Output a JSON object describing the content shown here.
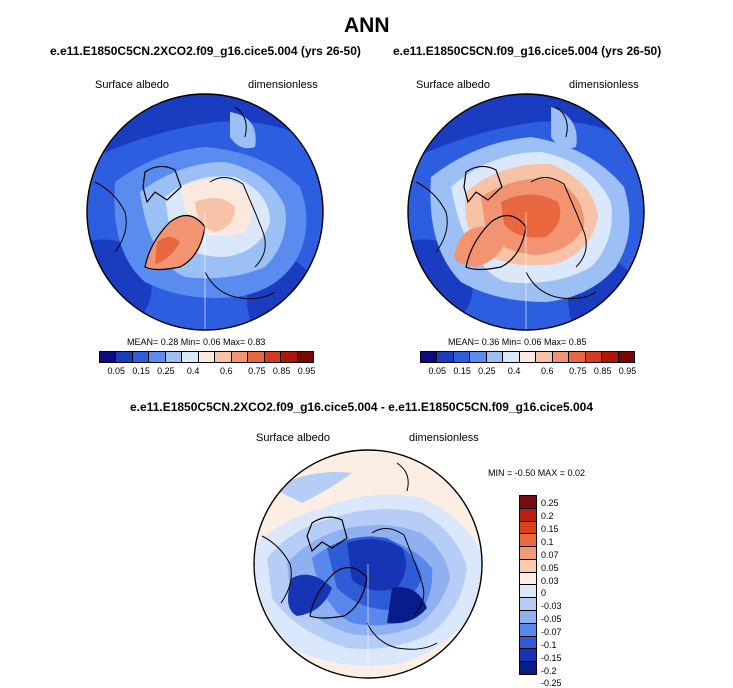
{
  "title": "ANN",
  "colors": {
    "albedo_scale": [
      "#0a0a82",
      "#1a3cc0",
      "#2e5ee0",
      "#5a8cf0",
      "#9cbff6",
      "#dbe8fb",
      "#fbe9df",
      "#f7c2a6",
      "#f29472",
      "#e8673f",
      "#d73a1e",
      "#b0150c",
      "#780808"
    ],
    "diff_scale": [
      "#7a0c0c",
      "#b82010",
      "#d8401f",
      "#ec6a43",
      "#f59a79",
      "#fbcbb1",
      "#fdeee3",
      "#dbe8fb",
      "#b5cdf7",
      "#8fb1f2",
      "#5a87ea",
      "#2f5bd6",
      "#1535b4",
      "#091d8a"
    ]
  },
  "panels": [
    {
      "case": "e.e11.E1850C5CN.2XCO2.f09_g16.cice5.004 (yrs 26-50)",
      "left_label": "Surface albedo",
      "right_label": "dimensionless",
      "stats": "MEAN=  0.28  Min=  0.06  Max=  0.83",
      "ticks": [
        "0.05",
        "0.15",
        "0.25",
        "0.4",
        "0.6",
        "0.75",
        "0.85",
        "0.95"
      ]
    },
    {
      "case": "e.e11.E1850C5CN.f09_g16.cice5.004 (yrs 26-50)",
      "left_label": "Surface albedo",
      "right_label": "dimensionless",
      "stats": "MEAN=  0.36  Min=  0.06  Max=  0.85",
      "ticks": [
        "0.05",
        "0.15",
        "0.25",
        "0.4",
        "0.6",
        "0.75",
        "0.85",
        "0.95"
      ]
    }
  ],
  "diff": {
    "case": "e.e11.E1850C5CN.2XCO2.f09_g16.cice5.004 - e.e11.E1850C5CN.f09_g16.cice5.004",
    "left_label": "Surface albedo",
    "right_label": "dimensionless",
    "stats": "MIN =  -0.50 MAX =   0.02",
    "ticks": [
      "0.25",
      "0.2",
      "0.15",
      "0.1",
      "0.07",
      "0.05",
      "0.03",
      "0",
      "-0.03",
      "-0.05",
      "-0.07",
      "-0.1",
      "-0.15",
      "-0.2",
      "-0.25"
    ]
  }
}
